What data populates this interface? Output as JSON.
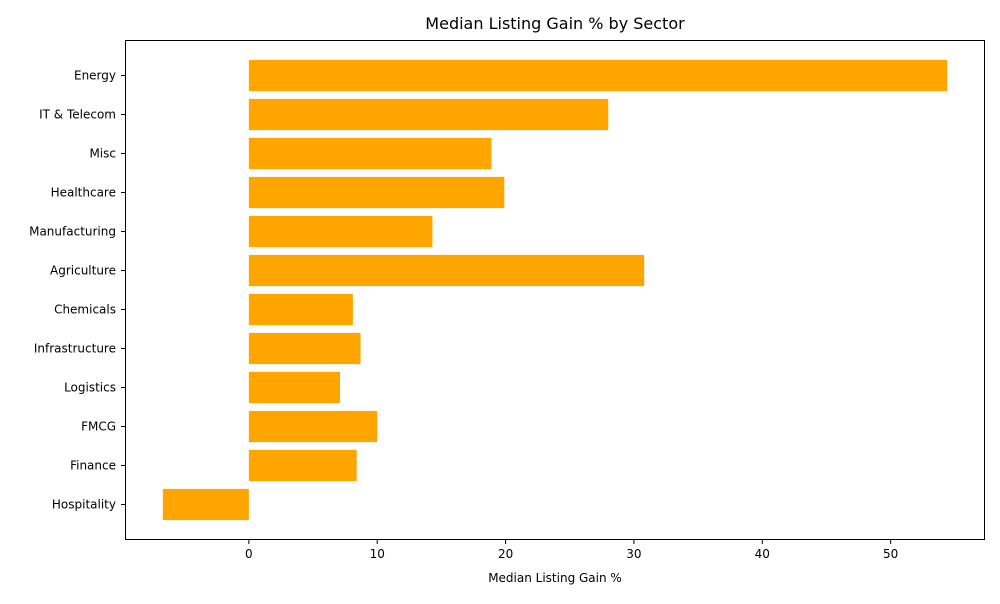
{
  "chart_data": {
    "type": "bar",
    "orientation": "horizontal",
    "title": "Median Listing Gain % by Sector",
    "xlabel": "Median Listing Gain %",
    "ylabel": "",
    "categories": [
      "Energy",
      "IT & Telecom",
      "Misc",
      "Healthcare",
      "Manufacturing",
      "Agriculture",
      "Chemicals",
      "Infrastructure",
      "Logistics",
      "FMCG",
      "Finance",
      "Hospitality"
    ],
    "values": [
      54.4,
      28.0,
      18.9,
      19.9,
      14.3,
      30.8,
      8.1,
      8.7,
      7.1,
      10.0,
      8.4,
      -6.7
    ],
    "xlim": [
      -9.65,
      57.35
    ],
    "xticks": [
      0,
      10,
      20,
      30,
      40,
      50
    ],
    "grid": false,
    "bar_color": "#ffa500"
  }
}
